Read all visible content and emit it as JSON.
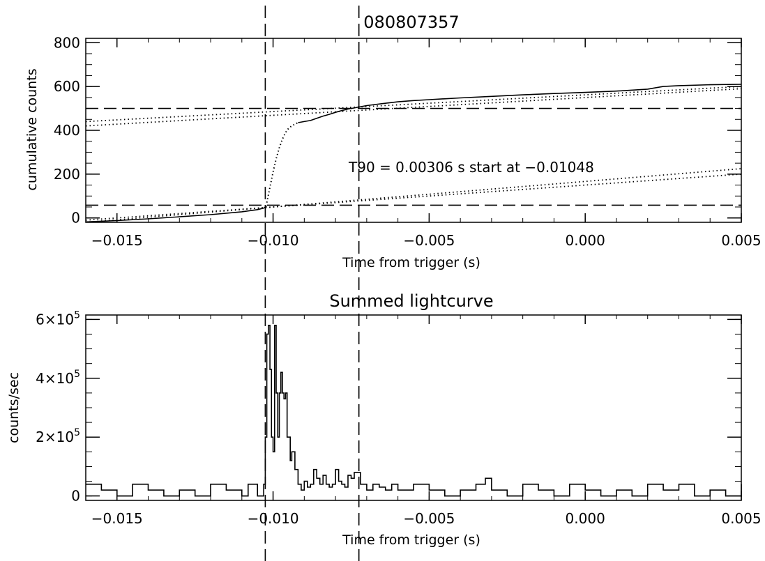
{
  "chart_data": [
    {
      "type": "line",
      "title": "080807357",
      "xlabel": "Time from trigger (s)",
      "ylabel": "cumulative counts",
      "xlim": [
        -0.016,
        0.005
      ],
      "ylim": [
        -20,
        820
      ],
      "xticks": [
        -0.015,
        -0.01,
        -0.005,
        0.0,
        0.005
      ],
      "xtick_labels": [
        "−0.015",
        "−0.010",
        "−0.005",
        "0.000",
        "0.005"
      ],
      "yticks": [
        0,
        200,
        400,
        600,
        800
      ],
      "ytick_labels": [
        "0",
        "200",
        "400",
        "600",
        "800"
      ],
      "annotation": "T90 = 0.00306  s start at −0.01048",
      "series": [
        {
          "style": "solid",
          "x": [
            -0.016,
            -0.015,
            -0.014,
            -0.013,
            -0.012,
            -0.011,
            -0.0105,
            -0.0103,
            -0.0102
          ],
          "y": [
            -18,
            -12,
            -4,
            5,
            15,
            28,
            38,
            45,
            55
          ]
        },
        {
          "style": "dotted",
          "x": [
            -0.0102,
            -0.0101,
            -0.01,
            -0.0099,
            -0.0098,
            -0.0097,
            -0.0096,
            -0.0095,
            -0.0094,
            -0.0093,
            -0.0092
          ],
          "y": [
            70,
            140,
            210,
            270,
            320,
            360,
            390,
            410,
            420,
            428,
            435
          ]
        },
        {
          "style": "solid",
          "x": [
            -0.0092,
            -0.009,
            -0.0088,
            -0.0086,
            -0.0084,
            -0.0082,
            -0.008,
            -0.0078,
            -0.0076,
            -0.0074,
            -0.0072,
            -0.007,
            -0.0065,
            -0.006,
            -0.0055,
            -0.005,
            -0.004,
            -0.003,
            -0.002,
            -0.001,
            0.0,
            0.001,
            0.002,
            0.0025,
            0.003,
            0.004,
            0.005
          ],
          "y": [
            435,
            440,
            445,
            455,
            465,
            473,
            482,
            490,
            497,
            502,
            508,
            513,
            522,
            530,
            536,
            540,
            548,
            555,
            562,
            568,
            573,
            579,
            588,
            600,
            604,
            608,
            610
          ]
        }
      ],
      "fit_lines": [
        {
          "x": [
            -0.016,
            0.005
          ],
          "y": [
            420,
            590
          ]
        },
        {
          "x": [
            -0.016,
            0.005
          ],
          "y": [
            440,
            600
          ]
        },
        {
          "x": [
            -0.016,
            0.005
          ],
          "y": [
            -10,
            200
          ]
        },
        {
          "x": [
            -0.016,
            0.005
          ],
          "y": [
            -20,
            225
          ]
        }
      ],
      "hlines": [
        500,
        58
      ],
      "vlines": [
        -0.01025,
        -0.00725
      ]
    },
    {
      "type": "line",
      "step": true,
      "title": "Summed lightcurve",
      "xlabel": "Time from trigger (s)",
      "ylabel": "counts/sec",
      "xlim": [
        -0.016,
        0.005
      ],
      "ylim": [
        -15000,
        615000
      ],
      "xticks": [
        -0.015,
        -0.01,
        -0.005,
        0.0,
        0.005
      ],
      "xtick_labels": [
        "−0.015",
        "−0.010",
        "−0.005",
        "0.000",
        "0.005"
      ],
      "yticks": [
        0,
        200000,
        400000,
        600000
      ],
      "ytick_labels": [
        {
          "text": "0"
        },
        {
          "base": "2×10",
          "exp": "5"
        },
        {
          "base": "4×10",
          "exp": "5"
        },
        {
          "base": "6×10",
          "exp": "5"
        }
      ],
      "series": [
        {
          "x": [
            -0.016,
            -0.0155,
            -0.015,
            -0.0145,
            -0.014,
            -0.0135,
            -0.013,
            -0.0125,
            -0.012,
            -0.0115,
            -0.011,
            -0.0108,
            -0.0105,
            -0.0103,
            -0.01025,
            -0.0102,
            -0.01015,
            -0.0101,
            -0.01005,
            -0.01,
            -0.00995,
            -0.0099,
            -0.00985,
            -0.0098,
            -0.00975,
            -0.0097,
            -0.00965,
            -0.0096,
            -0.00955,
            -0.0095,
            -0.00945,
            -0.0094,
            -0.0093,
            -0.0092,
            -0.0091,
            -0.009,
            -0.0089,
            -0.0088,
            -0.0087,
            -0.0086,
            -0.0085,
            -0.0084,
            -0.0083,
            -0.0082,
            -0.0081,
            -0.008,
            -0.0079,
            -0.0078,
            -0.0077,
            -0.0076,
            -0.0075,
            -0.0074,
            -0.0072,
            -0.007,
            -0.0068,
            -0.0066,
            -0.0064,
            -0.0062,
            -0.006,
            -0.0055,
            -0.005,
            -0.0045,
            -0.004,
            -0.0035,
            -0.0032,
            -0.003,
            -0.0025,
            -0.002,
            -0.0015,
            -0.001,
            -0.0005,
            0.0,
            0.0005,
            0.001,
            0.0015,
            0.002,
            0.0025,
            0.003,
            0.0035,
            0.004,
            0.0045,
            0.005
          ],
          "y": [
            40000,
            20000,
            0,
            40000,
            20000,
            0,
            20000,
            0,
            40000,
            20000,
            0,
            40000,
            0,
            40000,
            200000,
            550000,
            580000,
            430000,
            200000,
            150000,
            580000,
            350000,
            200000,
            350000,
            420000,
            350000,
            330000,
            350000,
            200000,
            200000,
            120000,
            150000,
            90000,
            40000,
            20000,
            50000,
            30000,
            40000,
            90000,
            60000,
            40000,
            70000,
            40000,
            30000,
            40000,
            90000,
            50000,
            40000,
            30000,
            70000,
            60000,
            80000,
            40000,
            20000,
            40000,
            30000,
            20000,
            40000,
            20000,
            40000,
            20000,
            0,
            20000,
            40000,
            60000,
            20000,
            0,
            40000,
            20000,
            0,
            40000,
            20000,
            0,
            20000,
            0,
            40000,
            20000,
            40000,
            0,
            20000,
            0,
            40000
          ]
        }
      ],
      "vlines": [
        -0.01025,
        -0.00725
      ]
    }
  ]
}
